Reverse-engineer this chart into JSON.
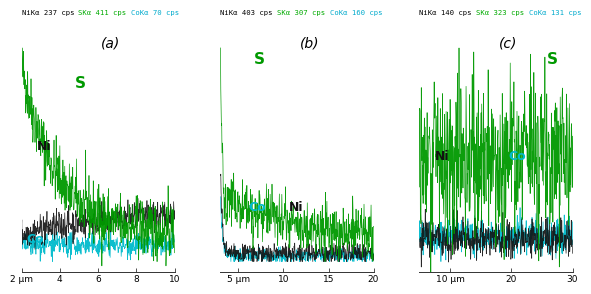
{
  "title_parts": [
    [
      [
        "NiKα 237 cps ",
        "black"
      ],
      [
        "SKα 411 cps ",
        "#00aa00"
      ],
      [
        "CoKα 70 cps",
        "#00aacc"
      ]
    ],
    [
      [
        "NiKα 403 cps ",
        "black"
      ],
      [
        "SKα 307 cps ",
        "#00aa00"
      ],
      [
        "CoKα 160 cps",
        "#00aacc"
      ]
    ],
    [
      [
        "NiKα 140 cps ",
        "black"
      ],
      [
        "SKα 323 cps ",
        "#00aa00"
      ],
      [
        "CoKα 131 cps",
        "#00aacc"
      ]
    ]
  ],
  "panel_labels": [
    "(a)",
    "(b)",
    "(c)"
  ],
  "xlim_a": [
    2,
    10
  ],
  "xlim_b": [
    3,
    20
  ],
  "xlim_c": [
    5,
    30
  ],
  "xticks_a": [
    2,
    4,
    6,
    8,
    10
  ],
  "xticks_b": [
    5,
    10,
    15,
    20
  ],
  "xticks_c": [
    10,
    20,
    30
  ],
  "xticklabels_a": [
    "2 µm",
    "4",
    "6",
    "8",
    "10"
  ],
  "xticklabels_b": [
    "5 µm",
    "10",
    "15",
    "20"
  ],
  "xticklabels_c": [
    "10 µm",
    "20",
    "30"
  ],
  "colors": {
    "S": "#009900",
    "Ni": "#111111",
    "Co": "#00bbcc"
  },
  "bg_color": "#ffffff",
  "seed": 42,
  "lw": 0.5
}
